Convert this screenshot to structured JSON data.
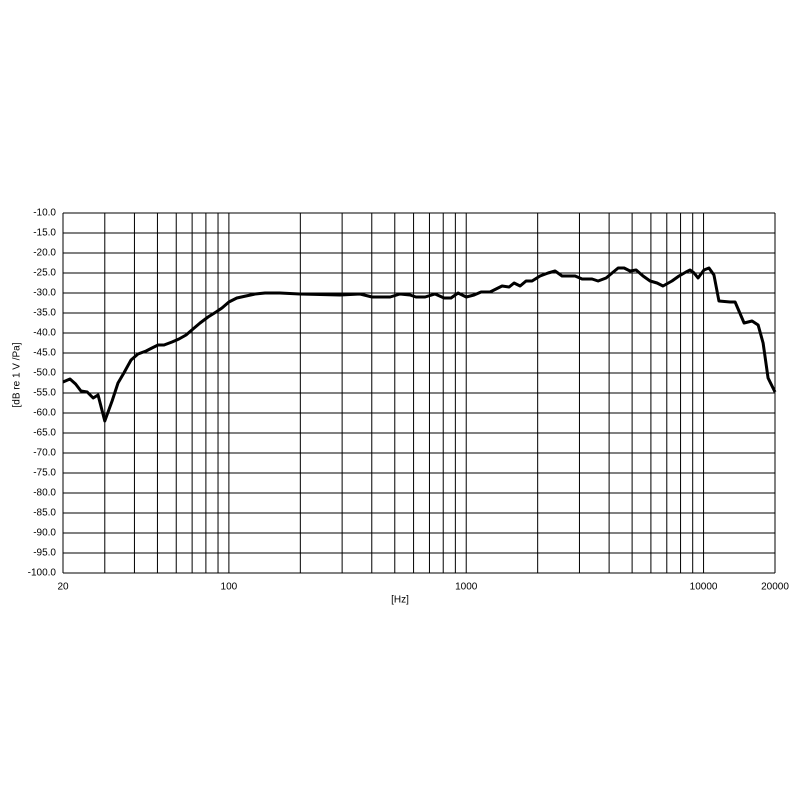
{
  "chart_data": {
    "type": "line",
    "x_label": "[Hz]",
    "y_label": "[dB re 1 V /Pa]",
    "xscale": "log",
    "xlim": [
      20,
      20000
    ],
    "ylim": [
      -100,
      -10
    ],
    "xticks": [
      20,
      100,
      1000,
      10000,
      20000
    ],
    "xgrid": [
      30,
      40,
      50,
      60,
      70,
      80,
      90,
      200,
      300,
      400,
      500,
      600,
      700,
      800,
      900,
      2000,
      3000,
      4000,
      5000,
      6000,
      7000,
      8000,
      9000
    ],
    "yticks": [
      {
        "value": -10,
        "label": "-10.0"
      },
      {
        "value": -15,
        "label": "-15.0"
      },
      {
        "value": -20,
        "label": "-20.0"
      },
      {
        "value": -25,
        "label": "-25.0"
      },
      {
        "value": -30,
        "label": "-30.0"
      },
      {
        "value": -35,
        "label": "-35.0"
      },
      {
        "value": -40,
        "label": "-40.0"
      },
      {
        "value": -45,
        "label": "-45.0"
      },
      {
        "value": -50,
        "label": "-50.0"
      },
      {
        "value": -55,
        "label": "-55.0"
      },
      {
        "value": -60,
        "label": "-60.0"
      },
      {
        "value": -65,
        "label": "-65.0"
      },
      {
        "value": -70,
        "label": "-70.0"
      },
      {
        "value": -75,
        "label": "-75.0"
      },
      {
        "value": -80,
        "label": "-80.0"
      },
      {
        "value": -85,
        "label": "-85.0"
      },
      {
        "value": -90,
        "label": "-90.0"
      },
      {
        "value": -95,
        "label": "-95.0"
      },
      {
        "value": -100,
        "label": "-100.0"
      }
    ],
    "grid": true,
    "x": [
      20,
      21.4,
      22.6,
      23.8,
      25.3,
      26.8,
      28.1,
      30,
      32.2,
      34.1,
      36.1,
      38.7,
      41.4,
      44.8,
      47.4,
      50.3,
      53.3,
      57.6,
      61.6,
      66,
      70.6,
      75.6,
      81.7,
      88.3,
      93.5,
      100,
      108,
      118,
      129,
      142,
      164,
      199,
      294,
      357,
      401,
      478,
      526,
      580,
      614,
      671,
      739,
      807,
      863,
      924,
      1000,
      1079,
      1155,
      1260,
      1416,
      1516,
      1591,
      1687,
      1787,
      1894,
      2047,
      2213,
      2368,
      2534,
      2876,
      3078,
      3390,
      3594,
      3885,
      4118,
      4366,
      4627,
      4900,
      5200,
      5560,
      5954,
      6370,
      6748,
      7360,
      7880,
      8438,
      8770,
      9120,
      9480,
      10040,
      10540,
      11060,
      11610,
      12940,
      13580,
      14820,
      16010,
      16980,
      17820,
      18700,
      20000
    ],
    "series": [
      {
        "color": "#000000",
        "values": [
          -52.25,
          -51.5,
          -52.75,
          -54.5,
          -54.75,
          -56.25,
          -55.5,
          -62,
          -57,
          -52.5,
          -50,
          -46.75,
          -45.25,
          -44.5,
          -43.75,
          -43,
          -43,
          -42.25,
          -41.5,
          -40.5,
          -39,
          -37.5,
          -36,
          -34.75,
          -33.75,
          -32.25,
          -31.25,
          -30.75,
          -30.25,
          -30,
          -30,
          -30.25,
          -30.5,
          -30.25,
          -31,
          -31,
          -30.25,
          -30.5,
          -31,
          -31,
          -30.25,
          -31.25,
          -31.25,
          -30,
          -31,
          -30.5,
          -29.75,
          -29.75,
          -28.25,
          -28.5,
          -27.5,
          -28.25,
          -27,
          -27,
          -25.75,
          -25,
          -24.5,
          -25.75,
          -25.75,
          -26.5,
          -26.5,
          -27,
          -26.25,
          -25,
          -23.75,
          -23.75,
          -24.5,
          -24.25,
          -25.75,
          -27,
          -27.5,
          -28.25,
          -27,
          -25.75,
          -24.75,
          -24.25,
          -25,
          -26.25,
          -24.25,
          -23.75,
          -25.5,
          -32,
          -32.25,
          -32.25,
          -37.5,
          -37,
          -38,
          -42.5,
          -51.25,
          -54.75
        ]
      }
    ]
  }
}
